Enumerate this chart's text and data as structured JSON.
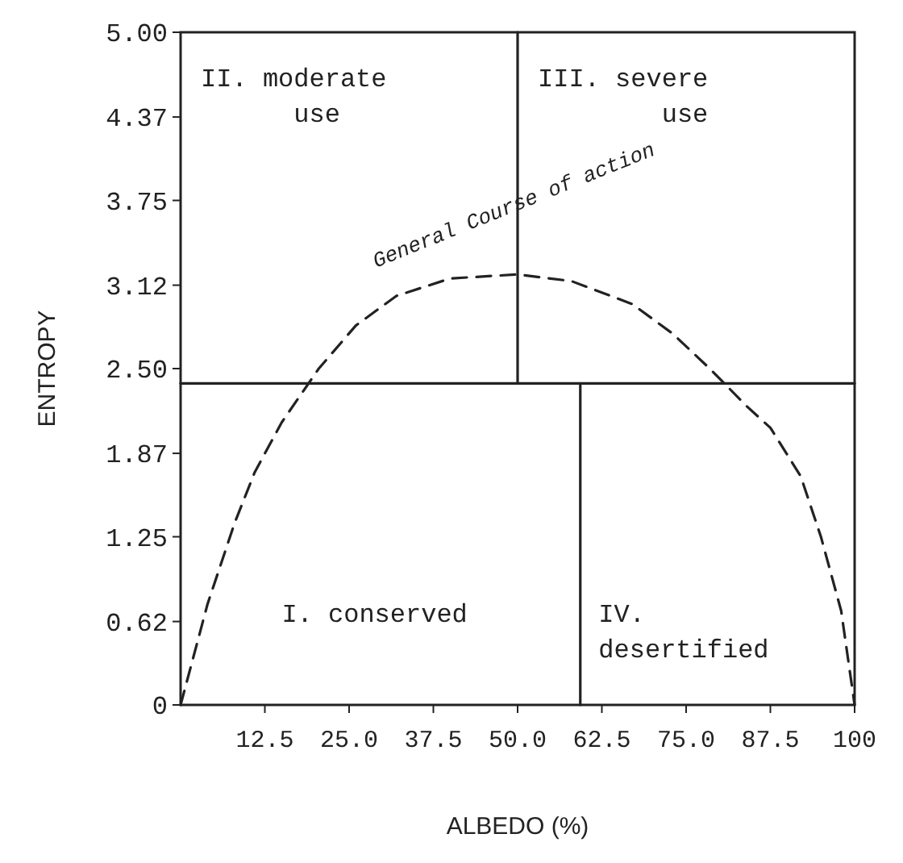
{
  "chart_data": {
    "type": "line",
    "xlabel": "ALBEDO (%)",
    "ylabel": "ENTROPY",
    "xlim": [
      0,
      100
    ],
    "ylim": [
      0,
      5
    ],
    "xticks": [
      12.5,
      {
        "value": 25,
        "label": "25.0"
      },
      37.5,
      {
        "value": 50,
        "label": "50.0"
      },
      62.5,
      {
        "value": 75,
        "label": "75.0"
      },
      87.5,
      100
    ],
    "yticks": [
      0,
      0.62,
      1.25,
      1.87,
      {
        "value": 2.5,
        "label": "2.50"
      },
      3.12,
      3.75,
      4.37,
      {
        "value": 5,
        "label": "5.00"
      }
    ],
    "grid": false,
    "series": [
      {
        "color": "#222222",
        "line_style": "dashed",
        "x": [
          0,
          4,
          8,
          11,
          15,
          20.5,
          26,
          32,
          40,
          50,
          58,
          67,
          73,
          78.5,
          84,
          87.5,
          92,
          95,
          98,
          100
        ],
        "values": [
          0,
          0.75,
          1.35,
          1.73,
          2.1,
          2.5,
          2.82,
          3.04,
          3.17,
          3.2,
          3.15,
          2.98,
          2.76,
          2.5,
          2.22,
          2.06,
          1.7,
          1.25,
          0.7,
          0
        ]
      },
      {
        "color": "#222222",
        "line_style": "solid",
        "x": [
          0,
          100
        ],
        "values": [
          2.39,
          2.39
        ]
      },
      {
        "color": "#222222",
        "line_style": "solid",
        "x": [
          50,
          50
        ],
        "values": [
          2.39,
          5
        ]
      },
      {
        "color": "#222222",
        "line_style": "solid",
        "x": [
          59.3,
          59.3
        ],
        "values": [
          0,
          2.39
        ]
      }
    ],
    "annotations": [
      "II. moderate\n      use",
      "III. severe\n        use",
      "I. conserved",
      "IV.\ndesertified",
      "General Course of action"
    ]
  }
}
